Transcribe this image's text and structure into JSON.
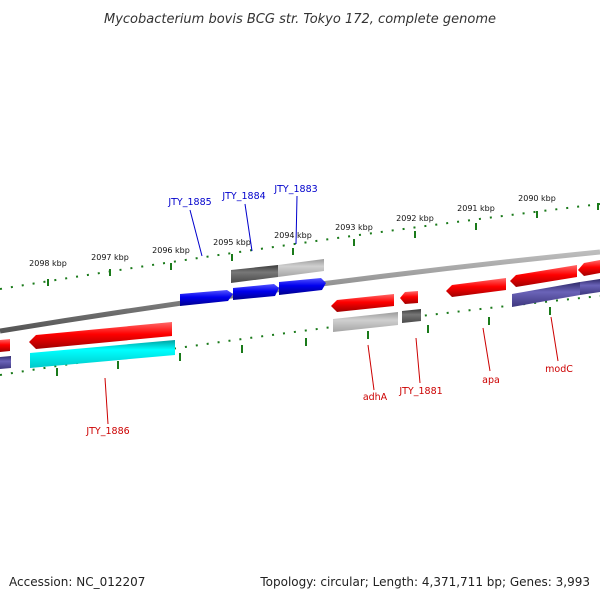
{
  "title": "Mycobacterium bovis BCG str. Tokyo 172, complete genome",
  "footer": {
    "accession": "Accession: NC_012207",
    "topology": "Topology: circular; Length: 4,371,711 bp; Genes: 3,993"
  },
  "scale_labels": [
    "2098 kbp",
    "2097 kbp",
    "2096 kbp",
    "2095 kbp",
    "2094 kbp",
    "2093 kbp",
    "2092 kbp",
    "2091 kbp",
    "2090 kbp"
  ],
  "colors": {
    "backbone": "#8a8a8a",
    "tick": "#1a7a1a",
    "forward_gene": "#e60000",
    "reverse_gene": "#0000dd",
    "cds_light": "#00e5e5",
    "cds_gray_light": "#b8b8b8",
    "cds_gray_dark": "#555555",
    "cds_purple": "#4b4494",
    "label_blue": "#0000cc",
    "label_red": "#cc0000"
  },
  "genes": [
    {
      "label": "JTY_1886",
      "color": "label_red"
    },
    {
      "label": "JTY_1885",
      "color": "label_blue"
    },
    {
      "label": "JTY_1884",
      "color": "label_blue"
    },
    {
      "label": "JTY_1883",
      "color": "label_blue"
    },
    {
      "label": "adhA",
      "color": "label_red"
    },
    {
      "label": "JTY_1881",
      "color": "label_red"
    },
    {
      "label": "apa",
      "color": "label_red"
    },
    {
      "label": "modC",
      "color": "label_red"
    }
  ]
}
